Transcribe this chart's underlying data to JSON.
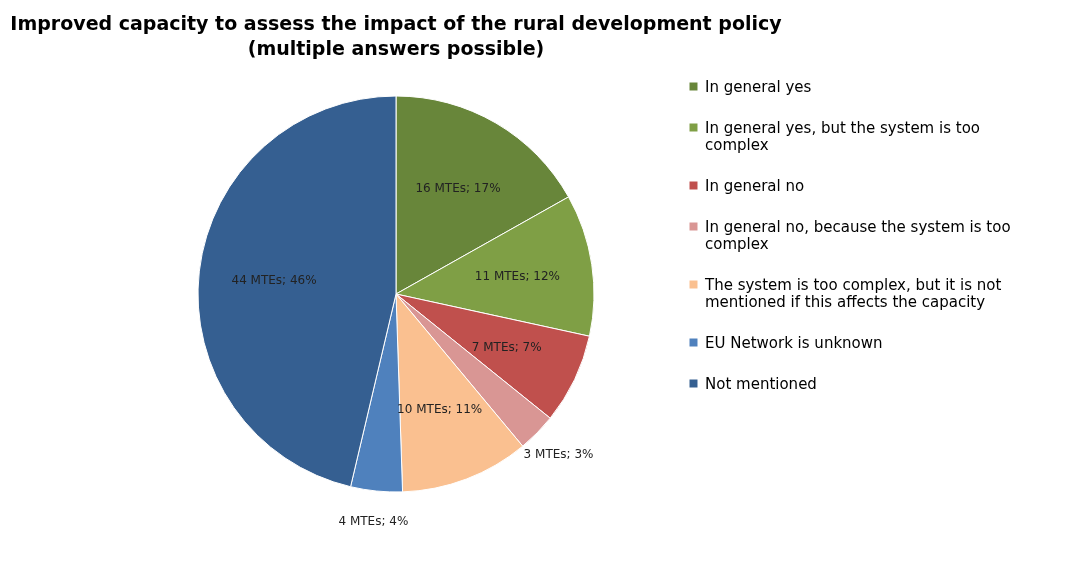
{
  "chart_data": {
    "type": "pie",
    "title": "Improved capacity to assess the impact of the rural development policy",
    "subtitle": "(multiple answers possible)",
    "categories": [
      "In general yes",
      "In general yes, but the system is too complex",
      "In general no",
      "In general no, because the system is too complex",
      "The system is too complex, but it is not mentioned if this affects the capacity",
      "EU Network is unknown",
      "Not mentioned"
    ],
    "values": [
      16,
      11,
      7,
      3,
      10,
      4,
      44
    ],
    "value_labels": [
      "16 MTEs; 17%",
      "11 MTEs; 12%",
      "7 MTEs; 7%",
      "3 MTEs; 3%",
      "10 MTEs; 11%",
      "4 MTEs; 4%",
      "44 MTEs; 46%"
    ],
    "colors": [
      "#68863a",
      "#7f9f45",
      "#c0504d",
      "#d99694",
      "#fac090",
      "#4f81bd",
      "#355f91"
    ],
    "legend": "right"
  }
}
